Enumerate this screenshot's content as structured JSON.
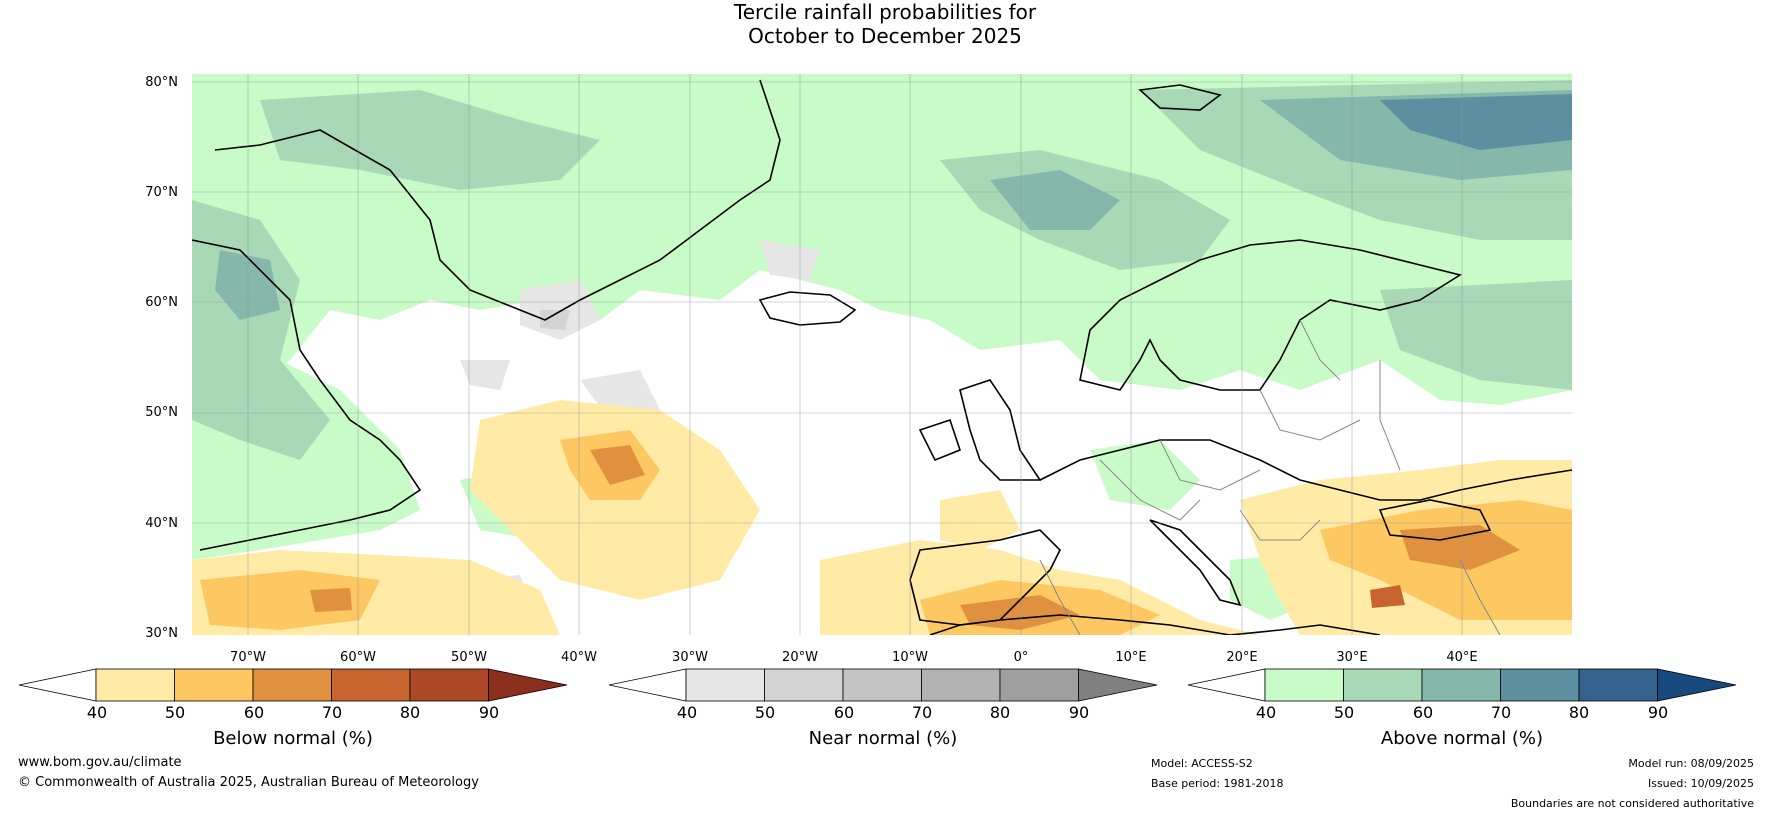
{
  "title": {
    "line1": "Tercile rainfall probabilities for",
    "line2": "October to December 2025"
  },
  "map": {
    "lat_labels": [
      "80°N",
      "70°N",
      "60°N",
      "50°N",
      "40°N",
      "30°N"
    ],
    "lon_labels": [
      "70°W",
      "60°W",
      "50°W",
      "40°W",
      "30°W",
      "20°W",
      "10°W",
      "0°",
      "10°E",
      "20°E",
      "30°E",
      "40°E"
    ],
    "extent": {
      "lon_min": -75,
      "lon_max": 50,
      "lat_min": 30,
      "lat_max": 81
    },
    "gridlines": true
  },
  "colorbars": [
    {
      "label": "Below normal (%)",
      "ticks": [
        "40",
        "50",
        "60",
        "70",
        "80",
        "90"
      ],
      "colors": [
        "#ffffff",
        "#ffeba5",
        "#fdc862",
        "#e0913f",
        "#c8642e",
        "#ac4828",
        "#8b2e1c"
      ]
    },
    {
      "label": "Near normal (%)",
      "ticks": [
        "40",
        "50",
        "60",
        "70",
        "80",
        "90"
      ],
      "colors": [
        "#ffffff",
        "#e6e6e6",
        "#d4d4d4",
        "#c4c4c4",
        "#b2b2b2",
        "#9f9f9f",
        "#808080"
      ]
    },
    {
      "label": "Above normal (%)",
      "ticks": [
        "40",
        "50",
        "60",
        "70",
        "80",
        "90"
      ],
      "colors": [
        "#ffffff",
        "#c8fbc8",
        "#a8d8b6",
        "#86b7ab",
        "#5c8fa0",
        "#34628e",
        "#17497f"
      ]
    }
  ],
  "footer": {
    "website": "www.bom.gov.au/climate",
    "copyright": "© Commonwealth of Australia 2025, Australian Bureau of Meteorology",
    "model": "Model: ACCESS-S2",
    "base_period": "Base period: 1981-2018",
    "model_run": "Model run: 08/09/2025",
    "issued": "Issued: 10/09/2025",
    "disclaimer": "Boundaries are not considered authoritative"
  }
}
